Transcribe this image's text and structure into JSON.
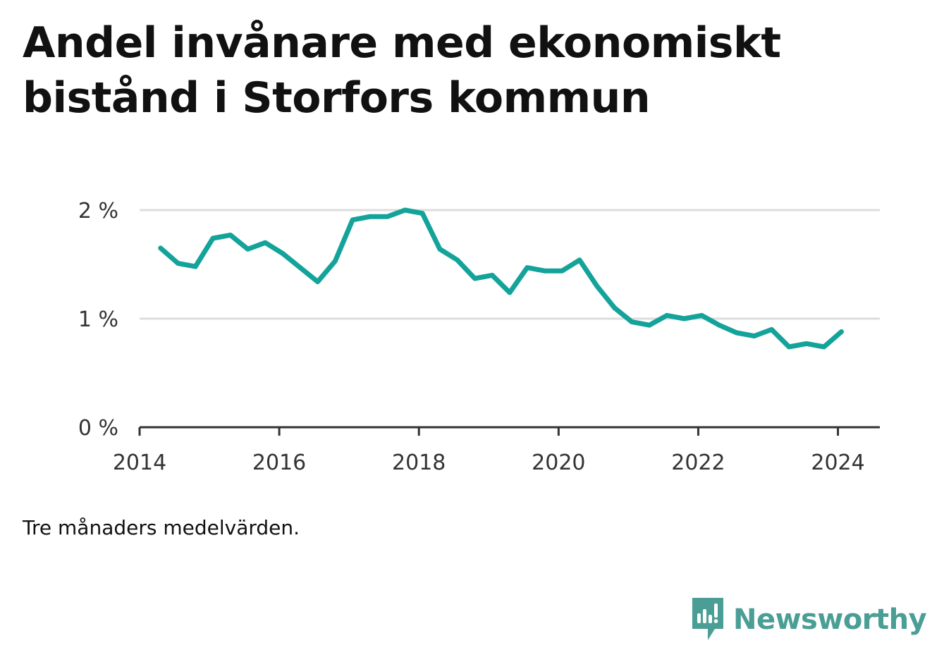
{
  "title": "Andel invånare med ekonomiskt bistånd i Storfors kommun",
  "note": "Tre månaders medelvärden.",
  "brand": {
    "name": "Newsworthy",
    "icon": "newsworthy-logo-icon",
    "color": "#4a9e95"
  },
  "colors": {
    "line": "#14a39a",
    "grid": "#dddddd",
    "axis": "#333333",
    "tick_text": "#333333"
  },
  "chart_data": {
    "type": "line",
    "title": "Andel invånare med ekonomiskt bistånd i Storfors kommun",
    "xlabel": "",
    "ylabel": "",
    "x_ticks": [
      "2014",
      "2016",
      "2018",
      "2020",
      "2022",
      "2024"
    ],
    "y_ticks": [
      "0 %",
      "1 %",
      "2 %"
    ],
    "xlim": [
      2014.0,
      2024.6
    ],
    "ylim": [
      0,
      2
    ],
    "grid": true,
    "legend": "none",
    "series": [
      {
        "x": [
          2014.3,
          2014.55,
          2014.8,
          2015.05,
          2015.3,
          2015.55,
          2015.8,
          2016.05,
          2016.3,
          2016.55,
          2016.8,
          2017.05,
          2017.3,
          2017.55,
          2017.8,
          2018.05,
          2018.3,
          2018.55,
          2018.8,
          2019.05,
          2019.3,
          2019.55,
          2019.8,
          2020.05,
          2020.3,
          2020.55,
          2020.8,
          2021.05,
          2021.3,
          2021.55,
          2021.8,
          2022.05,
          2022.3,
          2022.55,
          2022.8,
          2023.05,
          2023.3,
          2023.55,
          2023.8,
          2024.05
        ],
        "values": [
          1.65,
          1.51,
          1.48,
          1.74,
          1.77,
          1.64,
          1.7,
          1.6,
          1.47,
          1.34,
          1.53,
          1.91,
          1.94,
          1.94,
          2.0,
          1.97,
          1.64,
          1.54,
          1.37,
          1.4,
          1.24,
          1.47,
          1.44,
          1.44,
          1.54,
          1.3,
          1.1,
          0.97,
          0.94,
          1.03,
          1.0,
          1.03,
          0.94,
          0.87,
          0.84,
          0.9,
          0.74,
          0.77,
          0.74,
          0.88
        ]
      }
    ]
  }
}
